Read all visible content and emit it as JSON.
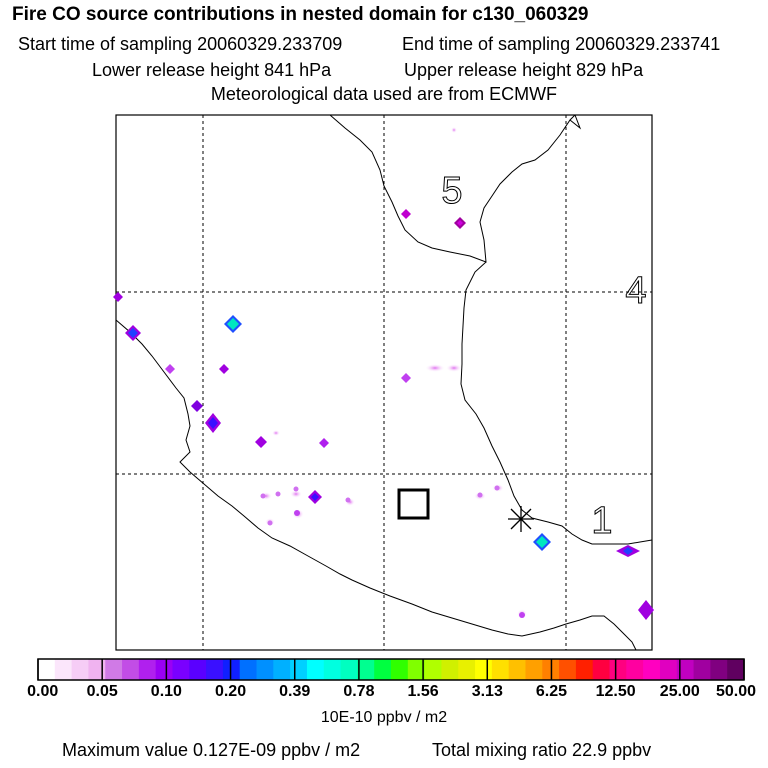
{
  "header": {
    "title": "Fire CO source contributions in nested domain for c130_060329",
    "start_time": "Start time of sampling 20060329.233709",
    "end_time": "End time of sampling 20060329.233741",
    "lower_release": "Lower release height  841 hPa",
    "upper_release": "Upper release height  829 hPa",
    "met_data": "Meteorological data used are from ECMWF"
  },
  "map": {
    "day_labels": [
      "5",
      "4",
      "1"
    ],
    "receptor_symbol": "open square (release location)",
    "site_symbol": "asterisk"
  },
  "colorbar": {
    "ticks": [
      "0.00",
      "0.05",
      "0.10",
      "0.20",
      "0.39",
      "0.78",
      "1.56",
      "3.13",
      "6.25",
      "12.50",
      "25.00",
      "50.00"
    ],
    "units": "10E-10 ppbv / m2",
    "colors": [
      "#ffffff",
      "#fbe6fb",
      "#f6cdf6",
      "#f0b3f0",
      "#d07ae6",
      "#c24de6",
      "#b020ee",
      "#9a00f4",
      "#7a00ff",
      "#5a00ff",
      "#3a10ff",
      "#1020ff",
      "#0070ff",
      "#0090ff",
      "#00b0ff",
      "#00d0ff",
      "#00ffff",
      "#00ffe0",
      "#00ffc0",
      "#00ff90",
      "#00ff40",
      "#30ff00",
      "#80ff00",
      "#b0ff00",
      "#d0f000",
      "#e8f000",
      "#ffff00",
      "#ffe000",
      "#ffc000",
      "#ffa000",
      "#ff8000",
      "#ff5000",
      "#ff2000",
      "#ff0040",
      "#ff0080",
      "#ff00a0",
      "#ff00c0",
      "#e000c0",
      "#c000c0",
      "#a000a0",
      "#800080",
      "#600060"
    ]
  },
  "footer": {
    "max_value": "Maximum value  0.127E-09 ppbv / m2",
    "total_mixing": "Total mixing ratio      22.9 ppbv"
  }
}
